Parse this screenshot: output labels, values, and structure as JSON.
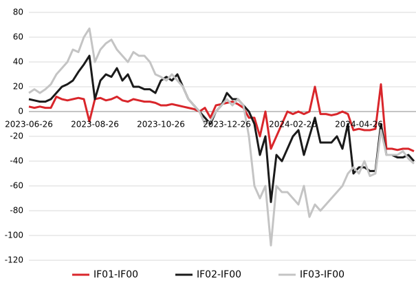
{
  "chart_data": {
    "type": "line",
    "categories": [
      "2023-06-26",
      null,
      null,
      null,
      null,
      null,
      null,
      null,
      null,
      null,
      null,
      null,
      "2023-08-26",
      null,
      null,
      null,
      null,
      null,
      null,
      null,
      null,
      null,
      null,
      null,
      "2023-10-26",
      null,
      null,
      null,
      null,
      null,
      null,
      null,
      null,
      null,
      null,
      null,
      "2023-12-26",
      null,
      null,
      null,
      null,
      null,
      null,
      null,
      null,
      null,
      null,
      null,
      "2024-02-26",
      null,
      null,
      null,
      null,
      null,
      null,
      null,
      null,
      null,
      null,
      null,
      "2024-04-26",
      null,
      null,
      null,
      null,
      null,
      null,
      null,
      null,
      null,
      null
    ],
    "series": [
      {
        "name": "IF01-IF00",
        "color": "#d9262b",
        "values": [
          4,
          3,
          4,
          3,
          3,
          12,
          10,
          9,
          10,
          11,
          10,
          -8,
          10,
          11,
          9,
          10,
          12,
          9,
          8,
          10,
          9,
          8,
          8,
          7,
          5,
          5,
          6,
          5,
          4,
          3,
          2,
          0,
          3,
          -5,
          5,
          6,
          7,
          8,
          6,
          3,
          -5,
          -5,
          -20,
          0,
          -30,
          -20,
          -10,
          0,
          -2,
          0,
          -2,
          0,
          20,
          -2,
          -2,
          -3,
          -2,
          0,
          -2,
          -15,
          -14,
          -15,
          -15,
          -14,
          22,
          -30,
          -30,
          -31,
          -30,
          -30,
          -32
        ]
      },
      {
        "name": "IF02-IF00",
        "color": "#1a1a1a",
        "values": [
          10,
          9,
          8,
          8,
          10,
          15,
          20,
          22,
          25,
          32,
          38,
          45,
          10,
          25,
          30,
          28,
          35,
          25,
          30,
          20,
          20,
          18,
          18,
          15,
          25,
          28,
          25,
          30,
          20,
          10,
          5,
          0,
          -5,
          -10,
          0,
          5,
          15,
          10,
          10,
          5,
          0,
          -10,
          -35,
          -20,
          -73,
          -35,
          -40,
          -30,
          -20,
          -15,
          -35,
          -20,
          -5,
          -25,
          -25,
          -25,
          -20,
          -30,
          -10,
          -50,
          -45,
          -45,
          -48,
          -48,
          -10,
          -35,
          -35,
          -37,
          -37,
          -35,
          -40
        ]
      },
      {
        "name": "IF03-IF00",
        "color": "#c4c4c4",
        "values": [
          15,
          18,
          15,
          18,
          22,
          30,
          35,
          40,
          50,
          48,
          60,
          67,
          40,
          50,
          55,
          58,
          50,
          45,
          40,
          48,
          45,
          45,
          40,
          30,
          28,
          25,
          30,
          25,
          20,
          10,
          5,
          0,
          -10,
          -8,
          0,
          5,
          10,
          5,
          10,
          5,
          -20,
          -60,
          -70,
          -60,
          -108,
          -60,
          -65,
          -65,
          -70,
          -75,
          -60,
          -85,
          -75,
          -80,
          -75,
          -70,
          -65,
          -60,
          -50,
          -45,
          -50,
          -40,
          -52,
          -50,
          -15,
          -35,
          -35,
          -35,
          -32,
          -38,
          -42
        ]
      }
    ],
    "ylim": [
      -120,
      80
    ],
    "yticks": [
      -120,
      -100,
      -80,
      -60,
      -40,
      -20,
      0,
      20,
      40,
      60,
      80
    ],
    "grid": true,
    "legend": "bottom"
  }
}
